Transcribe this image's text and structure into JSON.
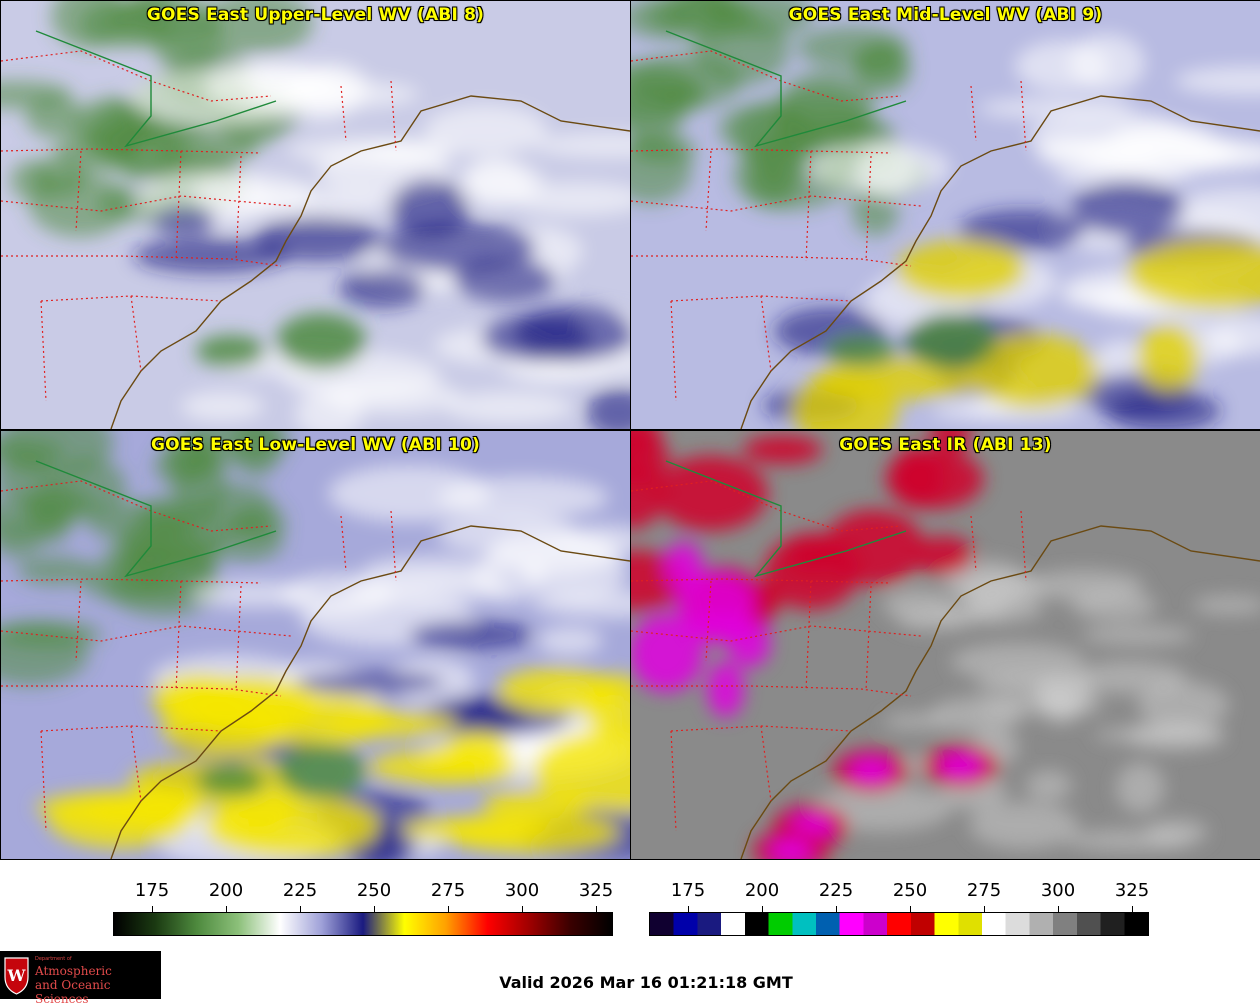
{
  "panels": [
    {
      "id": "p1",
      "title": "GOES East Upper-Level WV (ABI 8)",
      "scheme": "wv",
      "hazeColor": "#c9cbe6",
      "accent": "#4e8a3e"
    },
    {
      "id": "p2",
      "title": "GOES East Mid-Level WV (ABI 9)",
      "scheme": "wv",
      "hazeColor": "#b8bbe2",
      "accent": "#22227a"
    },
    {
      "id": "p3",
      "title": "GOES East Low-Level WV (ABI 10)",
      "scheme": "wv",
      "hazeColor": "#a6a9da",
      "accent": "#e8e000"
    },
    {
      "id": "p4",
      "title": "GOES East IR (ABI 13)",
      "scheme": "ir",
      "hazeColor": "#8a8a8a",
      "accent": "#d0002a"
    }
  ],
  "colorbars": {
    "wv": {
      "ticks": [
        "175",
        "200",
        "225",
        "250",
        "275",
        "300",
        "325"
      ],
      "stops": [
        "#000000",
        "#1b3a12",
        "#4e8a3e",
        "#8cc07a",
        "#ffffff",
        "#9fa1d8",
        "#1a1a80",
        "#ffff00",
        "#ffa000",
        "#ff0000",
        "#a00000",
        "#3a0000",
        "#000000"
      ]
    },
    "ir": {
      "ticks": [
        "175",
        "200",
        "225",
        "250",
        "275",
        "300",
        "325"
      ],
      "segments": [
        "#100030",
        "#0000aa",
        "#1a1a80",
        "#ffffff",
        "#000000",
        "#00cc00",
        "#00c0c0",
        "#0060b0",
        "#ff00ff",
        "#cc00cc",
        "#ff0000",
        "#c00000",
        "#ffff00",
        "#e0e000",
        "#ffffff",
        "#dcdcdc",
        "#b0b0b0",
        "#808080",
        "#505050",
        "#202020",
        "#000000"
      ]
    }
  },
  "footer": {
    "valid_text": "Valid 2026 Mar 16 01:21:18 GMT",
    "logo": {
      "department": "Department of",
      "line1": "Atmospheric",
      "line2": "and Oceanic Sciences",
      "crest_letter": "W",
      "crest_color": "#c5050c"
    }
  }
}
